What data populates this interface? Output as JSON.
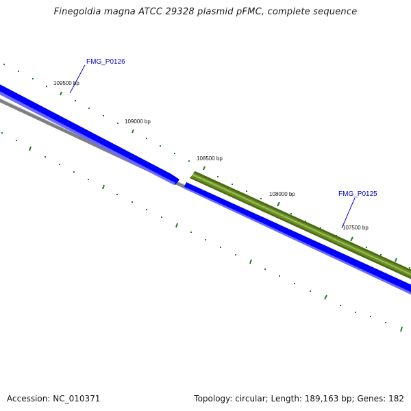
{
  "title": "Finegoldia magna ATCC 29328 plasmid pFMC, complete sequence",
  "accession_text": "Accession: NC_010371",
  "summary_text": "Topology: circular; Length: 189,163 bp; Genes: 182",
  "genes": [
    {
      "name": "FMG_P0126",
      "strand": "+",
      "color": "#0000ff",
      "label_color": "#0000cc"
    },
    {
      "name": "FMG_P0125",
      "strand": "-",
      "color": "#6b8e23",
      "label_color": "#0000cc"
    }
  ],
  "ticks": [
    {
      "label": "109500 bp"
    },
    {
      "label": "109000 bp"
    },
    {
      "label": "108500 bp"
    },
    {
      "label": "108000 bp"
    },
    {
      "label": "107500 bp"
    }
  ],
  "colors": {
    "backbone": "#808080",
    "gene_forward": "#0000ff",
    "gene_highlight": "#3333ff",
    "gene_reverse": "#6b8e23",
    "tick": "#1e7d1e",
    "gene_label": "#0000cc"
  }
}
